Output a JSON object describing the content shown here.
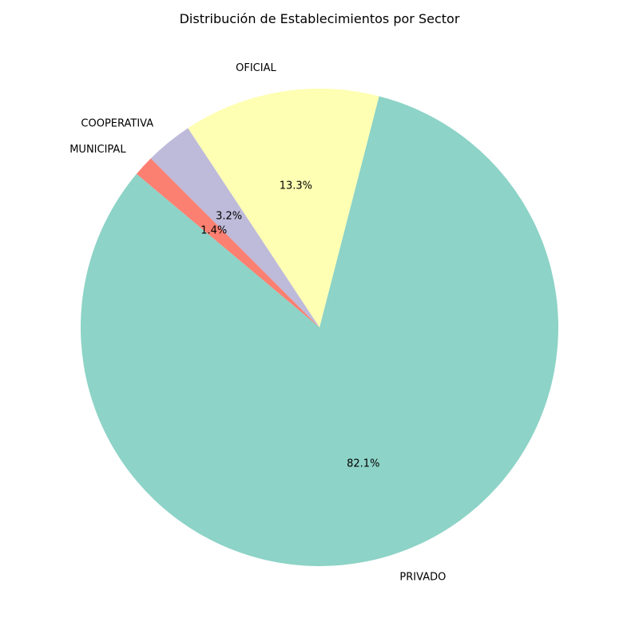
{
  "chart_data": {
    "type": "pie",
    "title": "Distribución de Establecimientos por Sector",
    "categories": [
      "PRIVADO",
      "OFICIAL",
      "COOPERATIVA",
      "MUNICIPAL"
    ],
    "values": [
      82.1,
      13.3,
      3.2,
      1.4
    ],
    "percent_labels": [
      "82.1%",
      "13.3%",
      "3.2%",
      "1.4%"
    ],
    "colors": [
      "#8dd3c7",
      "#ffffb3",
      "#bebada",
      "#fb8072"
    ],
    "start_angle_deg": 140,
    "direction": "counterclockwise",
    "legend": "none"
  }
}
